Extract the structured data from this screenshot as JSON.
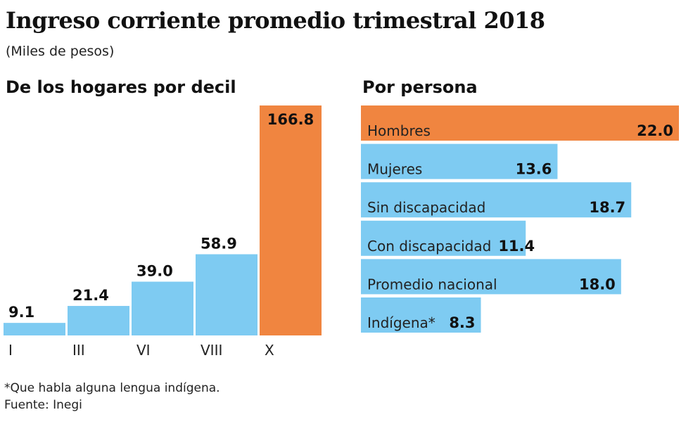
{
  "title": "Ingreso corriente promedio trimestral 2018",
  "subtitle": "(Miles de pesos)",
  "footnote": "*Que habla alguna lengua indígena.",
  "source": "Fuente: Inegi",
  "colors": {
    "highlight": "#f08540",
    "bar": "#7ecbf2"
  },
  "chart_data": [
    {
      "type": "bar",
      "title": "De los hogares por decil",
      "categories": [
        "I",
        "III",
        "VI",
        "VIII",
        "X"
      ],
      "values": [
        9.1,
        21.4,
        39.0,
        58.9,
        166.8
      ],
      "labels": [
        "9.1",
        "21.4",
        "39.0",
        "58.9",
        "166.8"
      ],
      "highlight": [
        "X"
      ],
      "grid": false
    },
    {
      "type": "bar",
      "orientation": "horizontal",
      "title": "Por persona",
      "categories": [
        "Hombres",
        "Mujeres",
        "Sin discapacidad",
        "Con discapacidad",
        "Promedio nacional",
        "Indígena*"
      ],
      "values": [
        22.0,
        13.6,
        18.7,
        11.4,
        18.0,
        8.3
      ],
      "labels": [
        "22.0",
        "13.6",
        "18.7",
        "11.4",
        "18.0",
        "8.3"
      ],
      "highlight": [
        "Hombres"
      ],
      "grid": false
    }
  ]
}
